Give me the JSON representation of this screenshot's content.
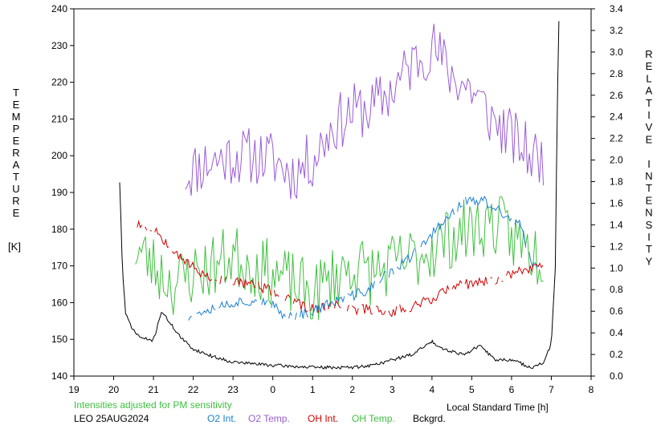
{
  "chart_data": {
    "type": "line",
    "left_axis": {
      "label_letters": [
        "T",
        "E",
        "M",
        "P",
        "E",
        "R",
        "A",
        "T",
        "U",
        "R",
        "E"
      ],
      "unit": "[K]",
      "range": [
        140,
        240
      ],
      "ticks": [
        "140",
        "150",
        "160",
        "170",
        "180",
        "190",
        "200",
        "210",
        "220",
        "230",
        "240"
      ]
    },
    "right_axis": {
      "label_letters": [
        "R",
        "E",
        "L",
        "A",
        "T",
        "I",
        "V",
        "E",
        "",
        "I",
        "N",
        "T",
        "E",
        "N",
        "S",
        "I",
        "T",
        "Y"
      ],
      "range": [
        0,
        3.4
      ],
      "ticks": [
        "0.0",
        "0.2",
        "0.4",
        "0.6",
        "0.8",
        "1.0",
        "1.2",
        "1.4",
        "1.6",
        "1.8",
        "2.0",
        "2.2",
        "2.4",
        "2.6",
        "2.8",
        "3.0",
        "3.2",
        "3.4"
      ]
    },
    "x_axis": {
      "label": "Local Standard Time [h]",
      "range": [
        19,
        32
      ],
      "ticks": [
        "19",
        "20",
        "21",
        "22",
        "23",
        "0",
        "1",
        "2",
        "3",
        "4",
        "5",
        "6",
        "7",
        "8"
      ]
    },
    "note": "Intensities adjusted for PM sensitivity",
    "station": "LEO 25AUG2024",
    "legend": [
      {
        "label": "O2 Int.",
        "color": "#1a7fd1"
      },
      {
        "label": "O2 Temp.",
        "color": "#9a5cd6"
      },
      {
        "label": "OH Int.",
        "color": "#d00000"
      },
      {
        "label": "OH Temp.",
        "color": "#40c040"
      },
      {
        "label": "Bckgrd.",
        "color": "#000000"
      }
    ],
    "series": [
      {
        "name": "O2 Temp.",
        "axis": "left",
        "color": "#9a5cd6",
        "style": "noisy",
        "start": 21.8,
        "end": 30.8,
        "step": 0.05,
        "seed": 11,
        "amplitude": 8,
        "knots": [
          [
            21.8,
            195
          ],
          [
            22.3,
            198
          ],
          [
            23.0,
            200
          ],
          [
            23.5,
            200
          ],
          [
            24.0,
            199
          ],
          [
            24.5,
            195
          ],
          [
            25.0,
            199
          ],
          [
            25.5,
            208
          ],
          [
            26.0,
            212
          ],
          [
            26.5,
            213
          ],
          [
            27.0,
            218
          ],
          [
            27.5,
            225
          ],
          [
            28.0,
            230
          ],
          [
            28.5,
            222
          ],
          [
            29.0,
            218
          ],
          [
            29.5,
            210
          ],
          [
            30.0,
            205
          ],
          [
            30.5,
            200
          ],
          [
            30.8,
            199
          ]
        ]
      },
      {
        "name": "OH Temp.",
        "axis": "left",
        "color": "#40c040",
        "style": "noisy",
        "start": 20.55,
        "end": 30.8,
        "step": 0.05,
        "seed": 23,
        "amplitude": 9,
        "knots": [
          [
            20.55,
            175
          ],
          [
            21.0,
            170
          ],
          [
            21.5,
            165
          ],
          [
            22.0,
            168
          ],
          [
            22.5,
            170
          ],
          [
            23.0,
            173
          ],
          [
            23.5,
            170
          ],
          [
            24.0,
            168
          ],
          [
            24.5,
            165
          ],
          [
            25.0,
            162
          ],
          [
            25.5,
            167
          ],
          [
            26.0,
            170
          ],
          [
            26.5,
            168
          ],
          [
            27.0,
            170
          ],
          [
            27.5,
            172
          ],
          [
            28.0,
            175
          ],
          [
            28.5,
            178
          ],
          [
            29.0,
            180
          ],
          [
            29.5,
            182
          ],
          [
            30.0,
            178
          ],
          [
            30.5,
            174
          ],
          [
            30.8,
            172
          ]
        ]
      },
      {
        "name": "O2 Int.",
        "axis": "right",
        "color": "#1a7fd1",
        "style": "dashed",
        "start": 21.8,
        "end": 30.8,
        "step": 0.04,
        "seed": 37,
        "amplitude": 0.05,
        "knots": [
          [
            21.8,
            0.55
          ],
          [
            22.3,
            0.62
          ],
          [
            23.0,
            0.68
          ],
          [
            23.5,
            0.7
          ],
          [
            24.0,
            0.65
          ],
          [
            24.3,
            0.55
          ],
          [
            24.8,
            0.58
          ],
          [
            25.3,
            0.65
          ],
          [
            25.8,
            0.72
          ],
          [
            26.3,
            0.78
          ],
          [
            26.8,
            0.92
          ],
          [
            27.3,
            1.05
          ],
          [
            27.8,
            1.22
          ],
          [
            28.3,
            1.45
          ],
          [
            28.8,
            1.62
          ],
          [
            29.3,
            1.62
          ],
          [
            29.8,
            1.5
          ],
          [
            30.2,
            1.4
          ],
          [
            30.5,
            1.05
          ],
          [
            30.8,
            0.95
          ]
        ]
      },
      {
        "name": "OH Int.",
        "axis": "right",
        "color": "#d00000",
        "style": "dashed",
        "start": 20.55,
        "end": 30.8,
        "step": 0.04,
        "seed": 53,
        "amplitude": 0.05,
        "knots": [
          [
            20.55,
            1.42
          ],
          [
            21.0,
            1.37
          ],
          [
            21.5,
            1.18
          ],
          [
            22.0,
            1.0
          ],
          [
            22.5,
            0.9
          ],
          [
            23.0,
            0.88
          ],
          [
            23.5,
            0.85
          ],
          [
            24.0,
            0.78
          ],
          [
            24.5,
            0.68
          ],
          [
            25.0,
            0.62
          ],
          [
            25.5,
            0.65
          ],
          [
            26.0,
            0.62
          ],
          [
            26.5,
            0.62
          ],
          [
            27.0,
            0.6
          ],
          [
            27.5,
            0.65
          ],
          [
            28.0,
            0.72
          ],
          [
            28.5,
            0.82
          ],
          [
            29.0,
            0.86
          ],
          [
            29.5,
            0.88
          ],
          [
            30.0,
            0.95
          ],
          [
            30.5,
            1.0
          ],
          [
            30.8,
            1.05
          ]
        ]
      },
      {
        "name": "Bckgrd.",
        "axis": "right",
        "color": "#000000",
        "style": "solid",
        "start": 20.15,
        "end": 31.2,
        "step": 0.03,
        "seed": 71,
        "amplitude": 0.015,
        "knots": [
          [
            20.15,
            1.8
          ],
          [
            20.22,
            1.0
          ],
          [
            20.3,
            0.57
          ],
          [
            20.5,
            0.42
          ],
          [
            20.7,
            0.35
          ],
          [
            21.0,
            0.33
          ],
          [
            21.2,
            0.6
          ],
          [
            21.4,
            0.5
          ],
          [
            21.7,
            0.35
          ],
          [
            22.0,
            0.25
          ],
          [
            22.5,
            0.18
          ],
          [
            23.0,
            0.13
          ],
          [
            24.0,
            0.1
          ],
          [
            25.0,
            0.08
          ],
          [
            26.0,
            0.08
          ],
          [
            26.5,
            0.1
          ],
          [
            27.0,
            0.15
          ],
          [
            27.5,
            0.2
          ],
          [
            28.0,
            0.32
          ],
          [
            28.3,
            0.25
          ],
          [
            28.8,
            0.2
          ],
          [
            29.2,
            0.28
          ],
          [
            29.6,
            0.15
          ],
          [
            30.0,
            0.15
          ],
          [
            30.5,
            0.08
          ],
          [
            30.8,
            0.12
          ],
          [
            31.0,
            0.3
          ],
          [
            31.1,
            1.0
          ],
          [
            31.15,
            2.5
          ],
          [
            31.2,
            3.5
          ]
        ]
      }
    ]
  }
}
